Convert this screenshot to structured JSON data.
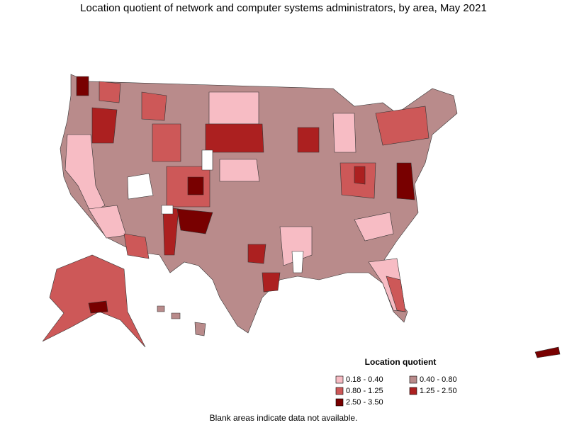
{
  "title": "Location quotient of network and computer systems administrators, by area, May 2021",
  "legend": {
    "title": "Location quotient",
    "items": [
      {
        "label": "0.18 - 0.40",
        "color": "#f7bcc4"
      },
      {
        "label": "0.40 - 0.80",
        "color": "#b98b8b"
      },
      {
        "label": "0.80 - 1.25",
        "color": "#cd5858"
      },
      {
        "label": "1.25 - 2.50",
        "color": "#ac2020"
      },
      {
        "label": "2.50 - 3.50",
        "color": "#780000"
      }
    ]
  },
  "note": "Blank areas indicate data not available."
}
